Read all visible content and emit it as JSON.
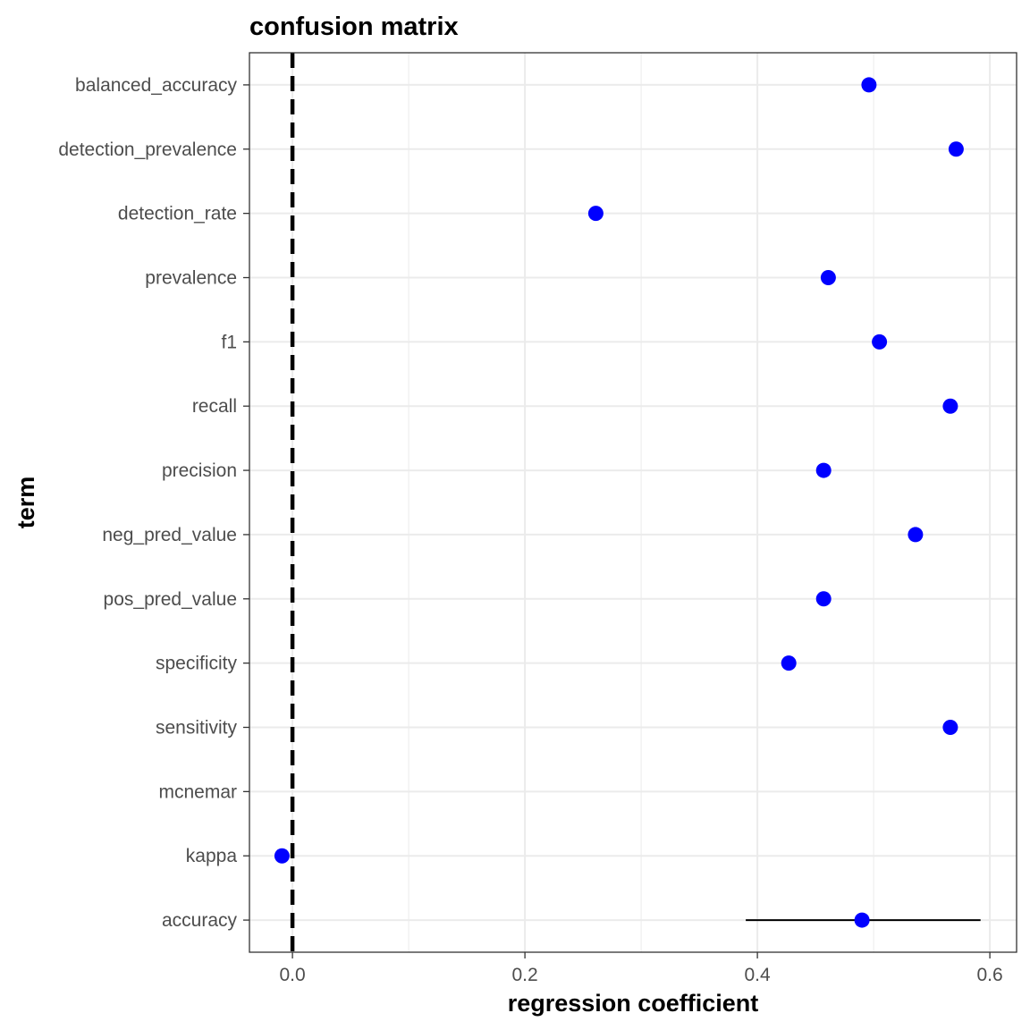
{
  "chart_data": {
    "type": "scatter",
    "title": "confusion matrix",
    "xlabel": "regression coefficient",
    "ylabel": "term",
    "xlim": [
      -0.037,
      0.623
    ],
    "x_ticks": [
      0.0,
      0.2,
      0.4,
      0.6
    ],
    "x_tick_labels": [
      "0.0",
      "0.2",
      "0.4",
      "0.6"
    ],
    "grid": true,
    "reference_line": {
      "x": 0,
      "style": "dashed",
      "color": "#000000"
    },
    "point_color": "#0000ff",
    "terms": [
      "accuracy",
      "kappa",
      "mcnemar",
      "sensitivity",
      "specificity",
      "pos_pred_value",
      "neg_pred_value",
      "precision",
      "recall",
      "f1",
      "prevalence",
      "detection_rate",
      "detection_prevalence",
      "balanced_accuracy"
    ],
    "estimates": [
      0.49,
      -0.009,
      null,
      0.566,
      0.427,
      0.457,
      0.536,
      0.457,
      0.566,
      0.505,
      0.461,
      0.261,
      0.571,
      0.496
    ],
    "error_bars": [
      {
        "term": "accuracy",
        "low": 0.39,
        "high": 0.592
      }
    ]
  }
}
